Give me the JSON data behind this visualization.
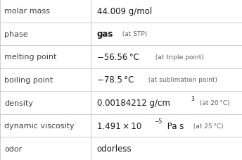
{
  "rows": [
    {
      "label": "molar mass",
      "value_parts": [
        {
          "text": "44.009 g/mol",
          "style": "normal",
          "size": 8.5
        }
      ]
    },
    {
      "label": "phase",
      "value_parts": [
        {
          "text": "gas",
          "style": "bold",
          "size": 8.5
        },
        {
          "text": "  (at STP)",
          "style": "small",
          "size": 6.5
        }
      ]
    },
    {
      "label": "melting point",
      "value_parts": [
        {
          "text": "−56.56 °C",
          "style": "normal",
          "size": 8.5
        },
        {
          "text": "  (at triple point)",
          "style": "small",
          "size": 6.5
        }
      ]
    },
    {
      "label": "boiling point",
      "value_parts": [
        {
          "text": "−78.5 °C",
          "style": "normal",
          "size": 8.5
        },
        {
          "text": "  (at sublimation point)",
          "style": "small",
          "size": 6.5
        }
      ]
    },
    {
      "label": "density",
      "value_parts": [
        {
          "text": "0.00184212 g/cm",
          "style": "normal",
          "size": 8.5
        },
        {
          "text": "3",
          "style": "super",
          "size": 5.5
        },
        {
          "text": "  (at 20 °C)",
          "style": "small",
          "size": 6.5
        }
      ]
    },
    {
      "label": "dynamic viscosity",
      "value_parts": [
        {
          "text": "1.491 × 10",
          "style": "normal",
          "size": 8.5
        },
        {
          "text": "−5",
          "style": "super",
          "size": 5.5
        },
        {
          "text": " Pa s",
          "style": "normal",
          "size": 8.5
        },
        {
          "text": "  (at 25 °C)",
          "style": "small",
          "size": 6.5
        }
      ]
    },
    {
      "label": "odor",
      "value_parts": [
        {
          "text": "odorless",
          "style": "normal",
          "size": 8.5
        }
      ]
    }
  ],
  "col_split": 0.375,
  "bg_color": "#ffffff",
  "border_color": "#cccccc",
  "label_color": "#404040",
  "value_color": "#1a1a1a",
  "small_color": "#606060",
  "label_fontsize": 8.0
}
